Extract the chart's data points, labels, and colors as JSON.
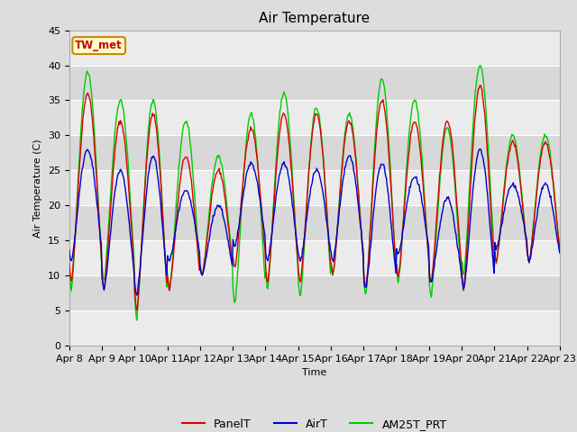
{
  "title": "Air Temperature",
  "ylabel": "Air Temperature (C)",
  "xlabel": "Time",
  "xlim_start": 0,
  "xlim_end": 15,
  "ylim": [
    0,
    45
  ],
  "yticks": [
    0,
    5,
    10,
    15,
    20,
    25,
    30,
    35,
    40,
    45
  ],
  "xtick_labels": [
    "Apr 8",
    "Apr 9",
    "Apr 10",
    "Apr 11",
    "Apr 12",
    "Apr 13",
    "Apr 14",
    "Apr 15",
    "Apr 16",
    "Apr 17",
    "Apr 18",
    "Apr 19",
    "Apr 20",
    "Apr 21",
    "Apr 22",
    "Apr 23"
  ],
  "annotation_text": "TW_met",
  "annotation_color": "#cc0000",
  "annotation_bg": "#ffffcc",
  "annotation_border": "#cc8800",
  "line_colors": {
    "PanelT": "#dd0000",
    "AirT": "#0000cc",
    "AM25T_PRT": "#00cc00"
  },
  "line_widths": {
    "PanelT": 1.0,
    "AirT": 1.0,
    "AM25T_PRT": 1.0
  },
  "fig_bg_color": "#dddddd",
  "plot_bg_color": "#e8e8e8",
  "grid_band_light": "#ebebeb",
  "grid_band_dark": "#d8d8d8",
  "grid_line_color": "#ffffff",
  "title_fontsize": 11,
  "axis_fontsize": 8,
  "legend_fontsize": 9,
  "day_maxs_panel": [
    36,
    32,
    33,
    27,
    25,
    31,
    33,
    33,
    32,
    35,
    32,
    32,
    37,
    29,
    29
  ],
  "day_mins_panel": [
    9,
    8,
    5,
    8,
    10,
    11,
    9,
    9,
    10,
    8,
    10,
    9,
    8,
    12,
    12
  ],
  "day_maxs_air": [
    28,
    25,
    27,
    22,
    20,
    26,
    26,
    25,
    27,
    26,
    24,
    21,
    28,
    23,
    23
  ],
  "day_mins_air": [
    12,
    8,
    7,
    12,
    10,
    14,
    12,
    12,
    12,
    8,
    13,
    9,
    8,
    14,
    12
  ],
  "day_maxs_am": [
    39,
    35,
    35,
    32,
    27,
    33,
    36,
    34,
    33,
    38,
    35,
    31,
    40,
    30,
    30
  ],
  "day_mins_am": [
    8,
    9,
    4,
    8,
    10,
    6,
    8,
    7,
    10,
    7,
    9,
    7,
    10,
    12,
    12
  ]
}
